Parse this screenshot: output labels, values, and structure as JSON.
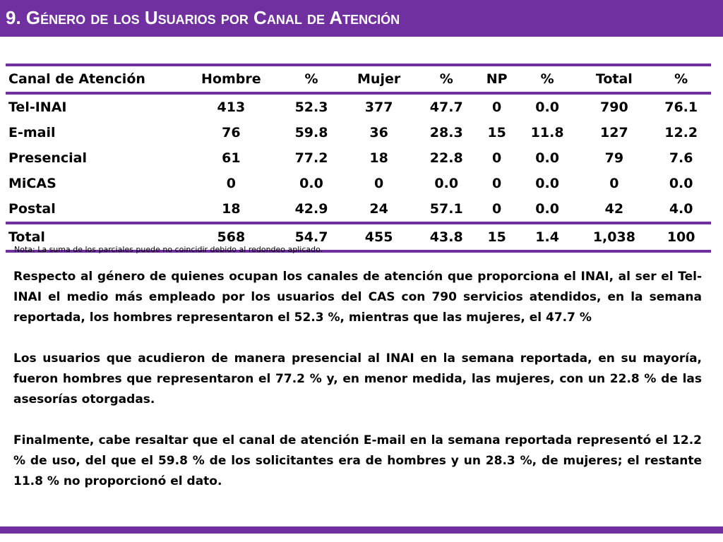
{
  "title": "9. Género de los Usuarios por Canal de Atención",
  "table": {
    "headers": [
      "Canal de Atención",
      "Hombre",
      "%",
      "Mujer",
      "%",
      "NP",
      "%",
      "Total",
      "%"
    ],
    "rows": [
      [
        "Tel-INAI",
        "413",
        "52.3",
        "377",
        "47.7",
        "0",
        "0.0",
        "790",
        "76.1"
      ],
      [
        "E-mail",
        "76",
        "59.8",
        "36",
        "28.3",
        "15",
        "11.8",
        "127",
        "12.2"
      ],
      [
        "Presencial",
        "61",
        "77.2",
        "18",
        "22.8",
        "0",
        "0.0",
        "79",
        "7.6"
      ],
      [
        "MiCAS",
        "0",
        "0.0",
        "0",
        "0.0",
        "0",
        "0.0",
        "0",
        "0.0"
      ],
      [
        "Postal",
        "18",
        "42.9",
        "24",
        "57.1",
        "0",
        "0.0",
        "42",
        "4.0"
      ]
    ],
    "total_row": [
      "Total",
      "568",
      "54.7",
      "455",
      "43.8",
      "15",
      "1.4",
      "1,038",
      "100"
    ]
  },
  "note": "Nota: La suma de los parciales puede no coincidir debido al redondeo aplicado.",
  "paragraphs": [
    "Respecto al género de quienes ocupan los canales de atención que proporciona el INAI, al ser el Tel-INAI el medio más empleado por los usuarios del CAS con 790 servicios atendidos, en la semana reportada, los hombres representaron el 52.3 %, mientras que las mujeres, el 47.7 %",
    "Los usuarios que acudieron de manera presencial al INAI en la semana reportada, en su mayoría, fueron hombres que representaron el 77.2 % y, en menor medida, las mujeres, con un 22.8 % de las asesorías otorgadas.",
    "Finalmente, cabe resaltar que el canal de atención E-mail en la semana reportada representó el 12.2 % de uso, del que el 59.8 % de los solicitantes era de hombres y un 28.3 %, de mujeres; el restante 11.8 % no proporcionó el dato."
  ]
}
